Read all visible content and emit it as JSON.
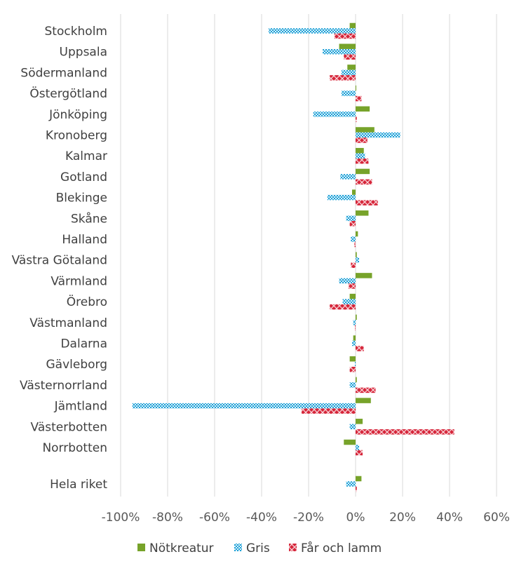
{
  "chart_data": {
    "type": "bar",
    "orientation": "horizontal",
    "categories": [
      "Stockholm",
      "Uppsala",
      "Södermanland",
      "Östergötland",
      "Jönköping",
      "Kronoberg",
      "Kalmar",
      "Gotland",
      "Blekinge",
      "Skåne",
      "Halland",
      "Västra Götaland",
      "Värmland",
      "Örebro",
      "Västmanland",
      "Dalarna",
      "Gävleborg",
      "Västernorrland",
      "Jämtland",
      "Västerbotten",
      "Norrbotten",
      "Hela riket"
    ],
    "series": [
      {
        "name": "Nötkreatur",
        "color": "#77a32a",
        "pattern": "solid",
        "values": [
          -2.5,
          -7,
          -3.5,
          0.3,
          6,
          8,
          3.5,
          6,
          -1.5,
          5.5,
          1,
          0.5,
          7,
          -2.5,
          0.5,
          -1,
          -2.5,
          0.5,
          6.5,
          3,
          -5,
          2.5
        ]
      },
      {
        "name": "Gris",
        "color": "#1ea0d6",
        "pattern": "checker",
        "values": [
          -37,
          -14,
          -6,
          -6,
          -18,
          19,
          4,
          -6.5,
          -12,
          -4,
          -2,
          1.5,
          -7,
          -5.5,
          -1,
          -1.5,
          -0.3,
          -2.5,
          -95,
          -2.5,
          1.5,
          -4
        ]
      },
      {
        "name": "Får och lamm",
        "color": "#d6263a",
        "pattern": "cross",
        "values": [
          -9,
          -5,
          -11,
          2.5,
          0.5,
          5,
          5.5,
          7,
          9.5,
          -2.5,
          -0.5,
          -2,
          -3,
          -11,
          -0.3,
          3.5,
          -2.5,
          8.5,
          -23,
          42,
          3,
          0.5
        ]
      }
    ],
    "xlim": [
      -100,
      60
    ],
    "xticks": [
      "-100%",
      "-80%",
      "-60%",
      "-40%",
      "-20%",
      "0%",
      "20%",
      "40%",
      "60%"
    ],
    "grid": "vertical",
    "legend_position": "bottom",
    "title": "",
    "xlabel": "",
    "ylabel": ""
  }
}
